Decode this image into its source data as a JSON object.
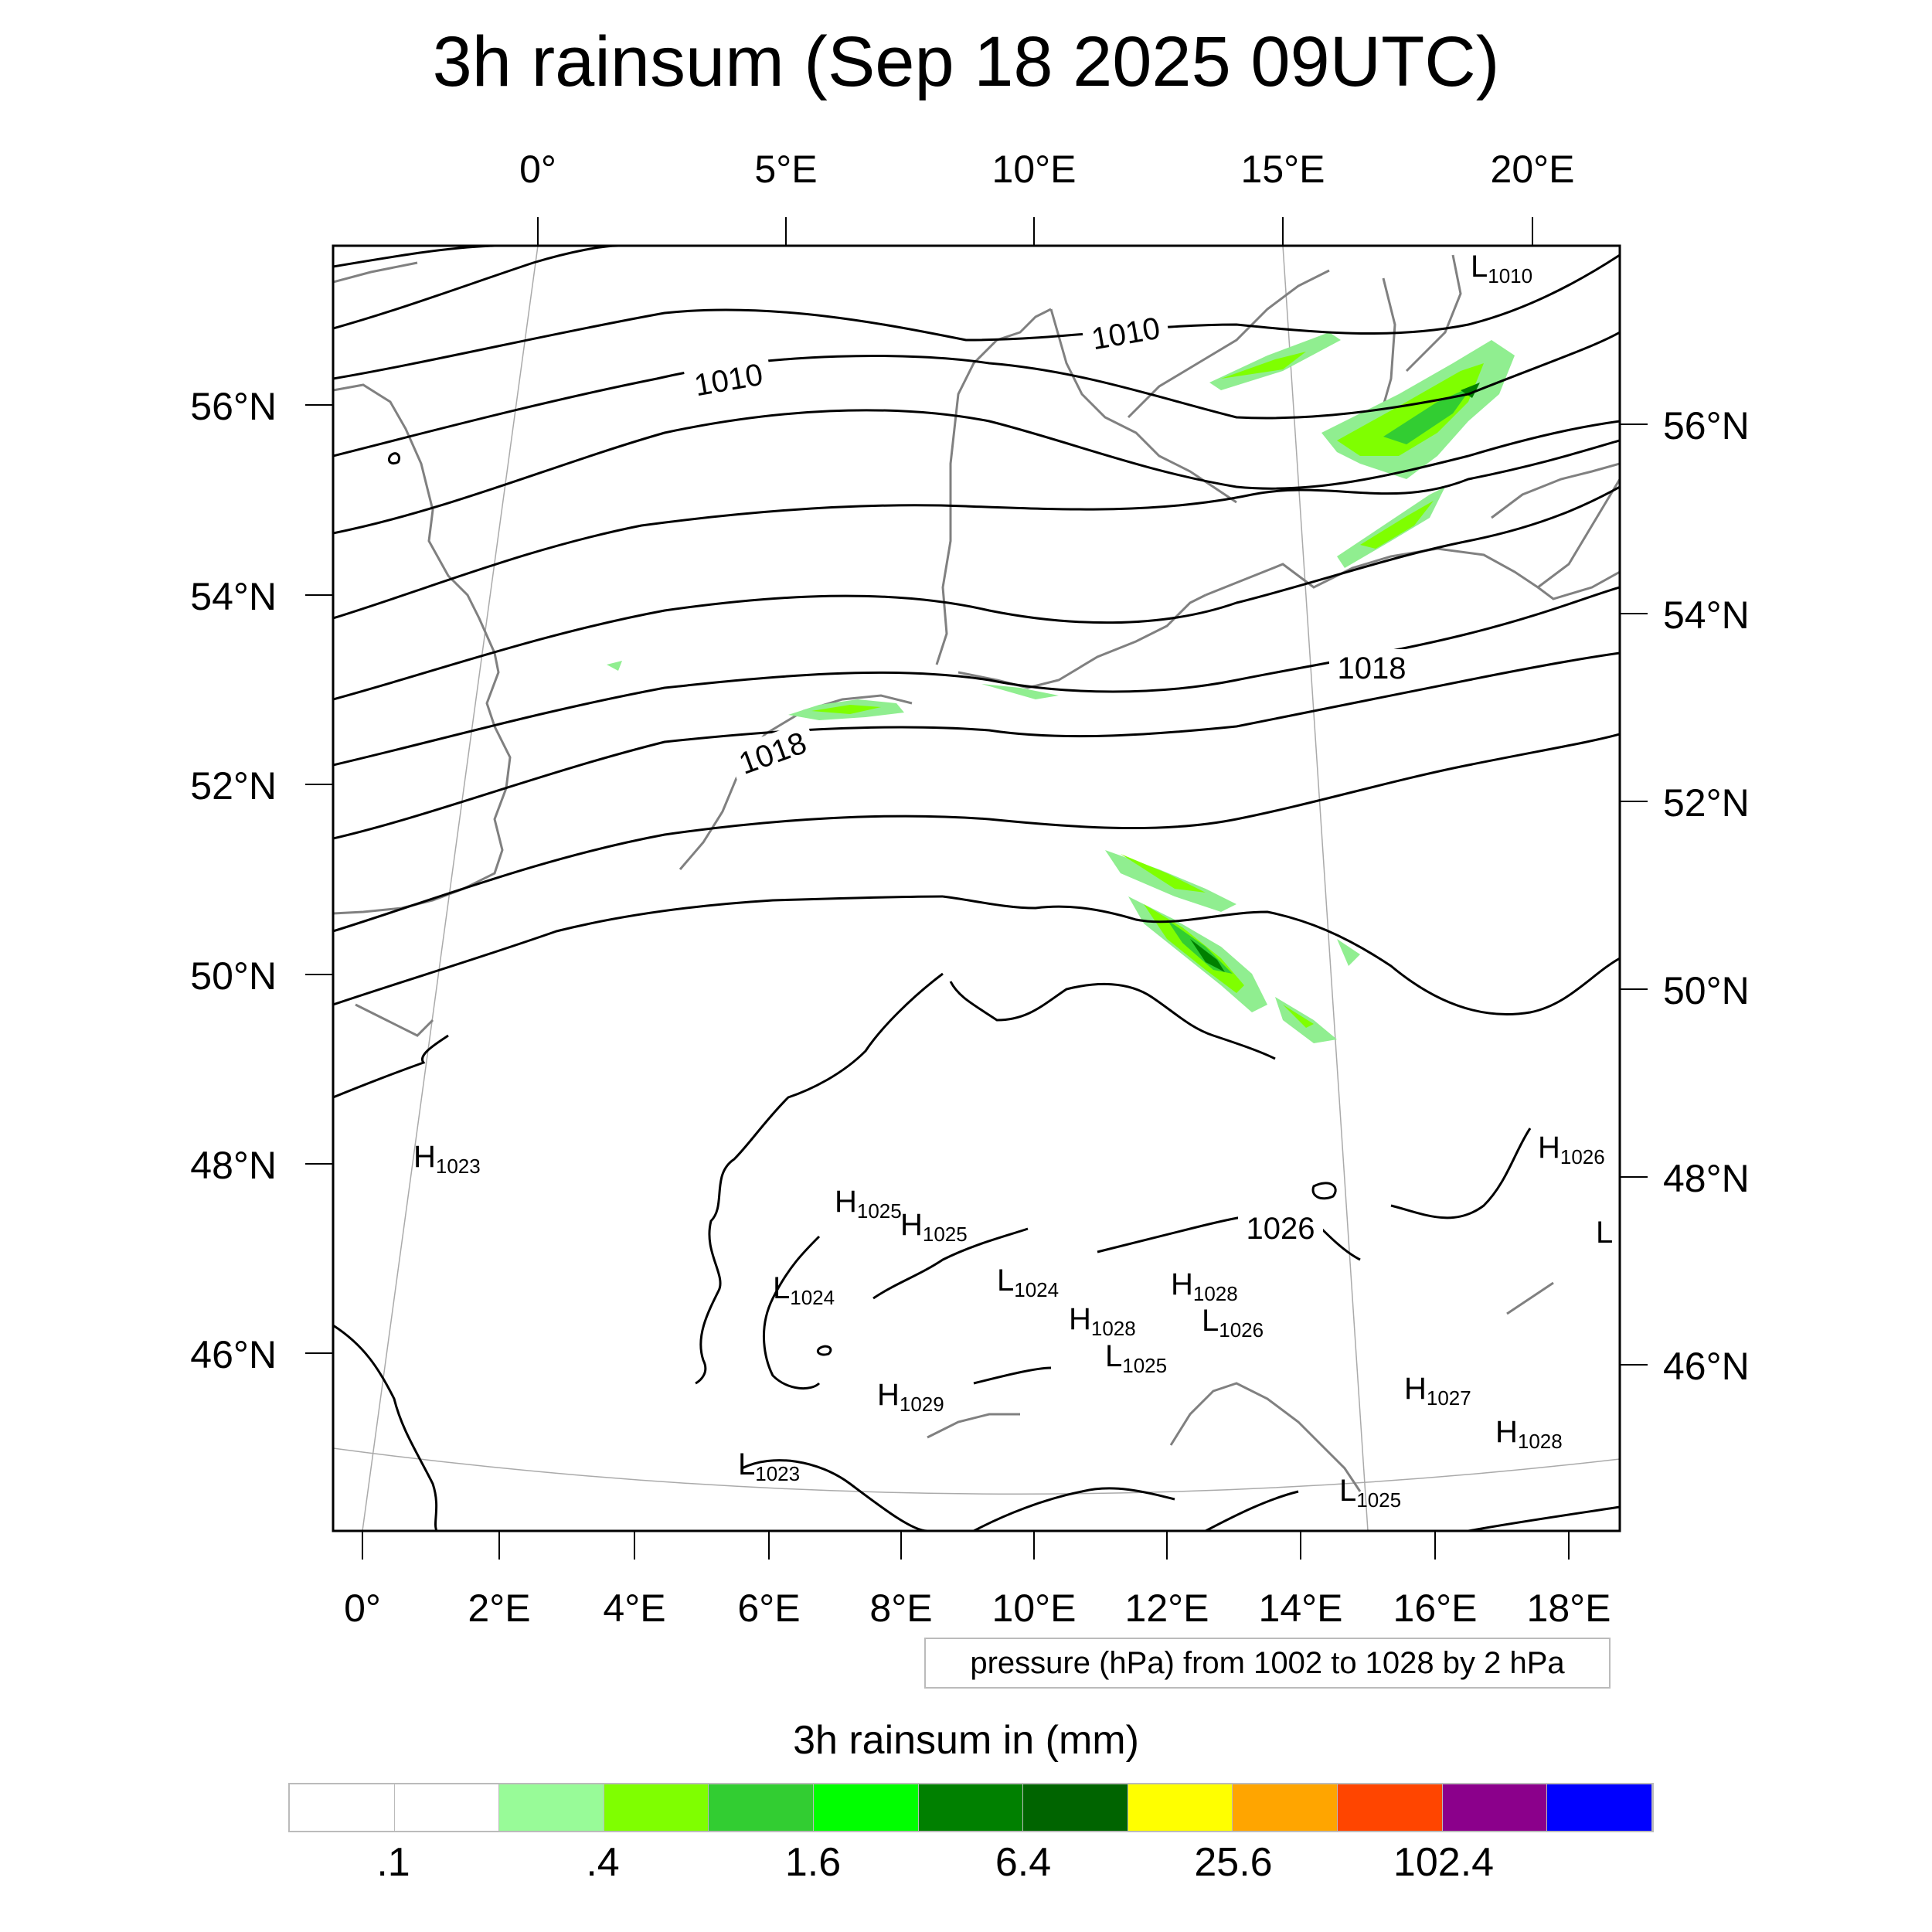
{
  "title": "3h rainsum (Sep 18 2025 09UTC)",
  "map": {
    "top_lon_labels": [
      "0°",
      "5°E",
      "10°E",
      "15°E",
      "20°E"
    ],
    "bottom_lon_labels": [
      "0°",
      "2°E",
      "4°E",
      "6°E",
      "8°E",
      "10°E",
      "12°E",
      "14°E",
      "16°E",
      "18°E"
    ],
    "left_lat_labels": [
      "56°N",
      "54°N",
      "52°N",
      "50°N",
      "48°N",
      "46°N"
    ],
    "right_lat_labels": [
      "56°N",
      "54°N",
      "52°N",
      "50°N",
      "48°N",
      "46°N"
    ],
    "contour_labels": [
      "1010",
      "1010",
      "1018",
      "1018",
      "1026"
    ],
    "pressure_centers": [
      {
        "type": "L",
        "value": "1010"
      },
      {
        "type": "H",
        "value": "1023"
      },
      {
        "type": "H",
        "value": "1025"
      },
      {
        "type": "H",
        "value": "1025"
      },
      {
        "type": "H",
        "value": "1026"
      },
      {
        "type": "L",
        "value": ""
      },
      {
        "type": "L",
        "value": "1024"
      },
      {
        "type": "L",
        "value": "1024"
      },
      {
        "type": "H",
        "value": "1028"
      },
      {
        "type": "H",
        "value": "1028"
      },
      {
        "type": "L",
        "value": "1026"
      },
      {
        "type": "L",
        "value": "1025"
      },
      {
        "type": "H",
        "value": "1029"
      },
      {
        "type": "H",
        "value": "1027"
      },
      {
        "type": "H",
        "value": "1028"
      },
      {
        "type": "L",
        "value": "1023"
      },
      {
        "type": "L",
        "value": "1025"
      }
    ],
    "colors": {
      "contour": "#000000",
      "coastline": "#808080",
      "graticule": "#aaaaaa",
      "rain_light": "#90ee90",
      "rain_medium": "#7fff00",
      "rain_heavy": "#32cd32",
      "rain_core": "#008000"
    }
  },
  "info_box": "pressure (hPa) from 1002 to 1028 by 2 hPa",
  "legend": {
    "title": "3h rainsum in (mm)",
    "swatches": [
      "#ffffff",
      "#ffffff",
      "#98fb98",
      "#7fff00",
      "#32cd32",
      "#00ff00",
      "#008000",
      "#006400",
      "#ffff00",
      "#ffa500",
      "#ff4500",
      "#8b008b",
      "#0000ff"
    ],
    "labels": [
      ".1",
      ".4",
      "1.6",
      "6.4",
      "25.6",
      "102.4"
    ]
  }
}
